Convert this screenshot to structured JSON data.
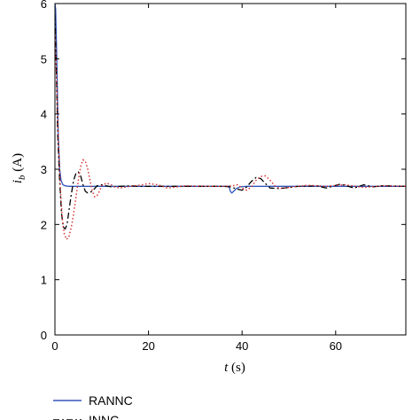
{
  "chart_data": {
    "type": "line",
    "xlabel_var": "t",
    "xlabel_unit": " (s)",
    "ylabel_var": "i",
    "ylabel_sub": "b",
    "ylabel_unit": " (A)",
    "xlim": [
      0,
      75
    ],
    "ylim": [
      0,
      6
    ],
    "x_ticks": [
      0,
      20,
      40,
      60
    ],
    "y_ticks": [
      0,
      1,
      2,
      3,
      4,
      5,
      6
    ],
    "grid": false,
    "legend": {
      "placement": "bottom-left, below plot"
    },
    "series": [
      {
        "name": "RANNC",
        "color": "#3355bb",
        "style": "solid",
        "x": [
          0,
          0.15,
          0.4,
          0.7,
          1.0,
          1.3,
          1.7,
          2.2,
          3,
          5,
          10,
          20,
          30,
          37.2,
          37.5,
          37.8,
          38.2,
          38.8,
          39.5,
          41,
          45,
          60,
          75
        ],
        "y": [
          6.0,
          5.9,
          5.0,
          3.6,
          3.0,
          2.8,
          2.72,
          2.7,
          2.69,
          2.69,
          2.69,
          2.69,
          2.69,
          2.69,
          2.6,
          2.57,
          2.6,
          2.65,
          2.68,
          2.69,
          2.69,
          2.69,
          2.69
        ]
      },
      {
        "name": "INNC",
        "color": "#000000",
        "style": "dashdot",
        "x": [
          0,
          0.3,
          0.6,
          1.0,
          1.4,
          1.8,
          2.2,
          2.6,
          3.0,
          3.5,
          4.0,
          4.5,
          5.0,
          5.5,
          6.0,
          6.5,
          7.0,
          8.0,
          9.0,
          10,
          11,
          12,
          14,
          16,
          18,
          20,
          24,
          30,
          36,
          37.5,
          38.3,
          39.0,
          40.0,
          41.0,
          42.0,
          43.0,
          44.0,
          45.0,
          46.0,
          48,
          52,
          56,
          58,
          61,
          64,
          66,
          68,
          70,
          75
        ],
        "y": [
          5.8,
          4.8,
          3.6,
          2.8,
          2.2,
          1.95,
          1.92,
          2.0,
          2.25,
          2.55,
          2.8,
          2.93,
          2.95,
          2.88,
          2.72,
          2.6,
          2.57,
          2.6,
          2.7,
          2.72,
          2.7,
          2.68,
          2.69,
          2.7,
          2.69,
          2.69,
          2.69,
          2.69,
          2.69,
          2.68,
          2.66,
          2.64,
          2.62,
          2.68,
          2.78,
          2.85,
          2.83,
          2.74,
          2.66,
          2.65,
          2.69,
          2.7,
          2.66,
          2.73,
          2.66,
          2.72,
          2.68,
          2.7,
          2.69
        ]
      },
      {
        "name": "",
        "color": "#d62728",
        "style": "dotted",
        "x": [
          0,
          0.4,
          0.8,
          1.2,
          1.6,
          2.0,
          2.5,
          3.0,
          3.5,
          4.0,
          4.5,
          5.0,
          5.5,
          6.0,
          6.5,
          7.0,
          7.5,
          8.0,
          8.5,
          9.0,
          9.5,
          10,
          11,
          12,
          13,
          14,
          16,
          18,
          20,
          22,
          24,
          28,
          32,
          36,
          38,
          39,
          40,
          41,
          42,
          43,
          44,
          45,
          46,
          47,
          48,
          50,
          54,
          58,
          62,
          66,
          70,
          75
        ],
        "y": [
          5.5,
          4.5,
          3.4,
          2.6,
          2.1,
          1.82,
          1.73,
          1.78,
          1.95,
          2.2,
          2.5,
          2.8,
          3.05,
          3.17,
          3.15,
          3.0,
          2.8,
          2.6,
          2.5,
          2.52,
          2.6,
          2.7,
          2.75,
          2.72,
          2.67,
          2.66,
          2.69,
          2.71,
          2.74,
          2.72,
          2.66,
          2.7,
          2.69,
          2.69,
          2.7,
          2.72,
          2.66,
          2.62,
          2.68,
          2.8,
          2.87,
          2.88,
          2.8,
          2.7,
          2.65,
          2.67,
          2.71,
          2.69,
          2.72,
          2.67,
          2.7,
          2.69
        ]
      }
    ]
  }
}
